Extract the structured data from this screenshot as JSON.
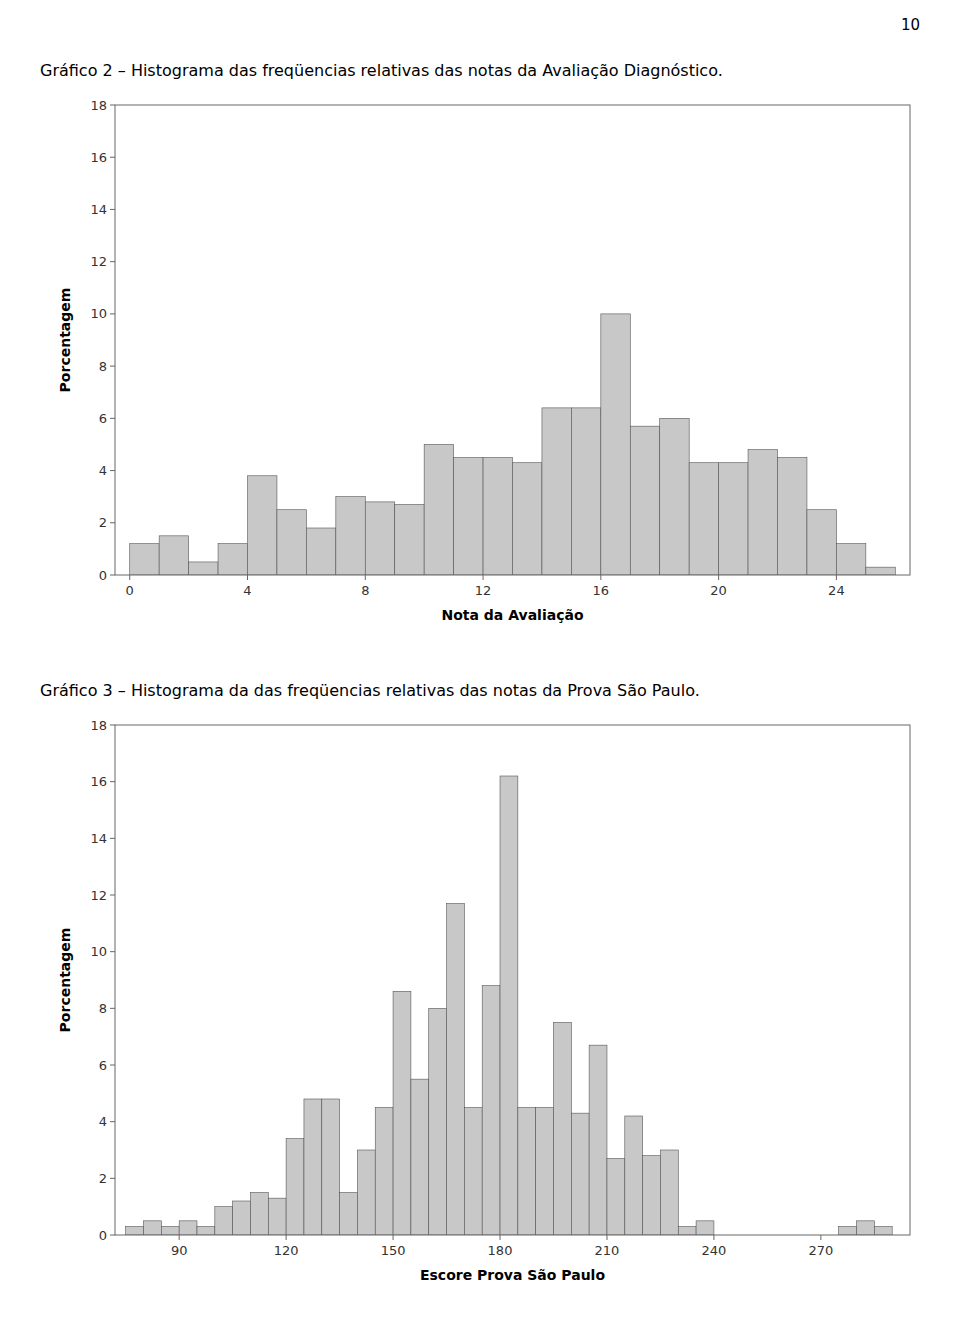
{
  "page_number": "10",
  "chart_data": [
    {
      "type": "histogram",
      "title": "Gráfico 2 – Histograma das freqüencias relativas das notas da Avaliação Diagnóstico.",
      "xlabel": "Nota da Avaliação",
      "ylabel": "Porcentagem",
      "bins": [
        0,
        1,
        2,
        3,
        4,
        5,
        6,
        7,
        8,
        9,
        10,
        11,
        12,
        13,
        14,
        15,
        16,
        17,
        18,
        19,
        20,
        21,
        22,
        23,
        24,
        25,
        26
      ],
      "values": [
        1.2,
        1.5,
        0.5,
        1.2,
        3.8,
        2.5,
        1.8,
        3.0,
        2.8,
        2.7,
        5.0,
        4.5,
        4.5,
        4.3,
        6.4,
        6.4,
        10.0,
        5.7,
        6.0,
        4.3,
        4.3,
        4.8,
        4.5,
        2.5,
        1.2,
        0.3
      ],
      "color": "#c8c8c8",
      "xlim": [
        -0.5,
        26.5
      ],
      "xticks": [
        0,
        4,
        8,
        12,
        16,
        20,
        24
      ],
      "ylim": [
        0,
        18
      ],
      "yticks": [
        0,
        2,
        4,
        6,
        8,
        10,
        12,
        14,
        16,
        18
      ],
      "grid": false
    },
    {
      "type": "histogram",
      "title": "Gráfico 3 – Histograma da das freqüencias relativas das notas da Prova São Paulo.",
      "xlabel": "Escore Prova São Paulo",
      "ylabel": "Porcentagem",
      "bins": [
        75,
        80,
        85,
        90,
        95,
        100,
        105,
        110,
        115,
        120,
        125,
        130,
        135,
        140,
        145,
        150,
        155,
        160,
        165,
        170,
        175,
        180,
        185,
        190,
        195,
        200,
        205,
        210,
        215,
        220,
        225,
        230,
        235,
        240,
        245,
        250,
        255,
        260,
        265,
        270,
        275,
        280,
        285,
        290
      ],
      "values": [
        0.3,
        0.5,
        0.3,
        0.5,
        0.3,
        1.0,
        1.2,
        1.5,
        1.3,
        3.4,
        4.8,
        4.8,
        1.5,
        3.0,
        4.5,
        8.6,
        5.5,
        8.0,
        11.7,
        4.5,
        8.8,
        16.2,
        4.5,
        4.5,
        7.5,
        4.3,
        6.7,
        2.7,
        4.2,
        2.8,
        3.0,
        0.3,
        0.5,
        0.0,
        0.0,
        0.0,
        0.0,
        0.0,
        0.0,
        0.0,
        0.3,
        0.5,
        0.3
      ],
      "color": "#c8c8c8",
      "xlim": [
        72,
        295
      ],
      "xticks": [
        90,
        120,
        150,
        180,
        210,
        240,
        270
      ],
      "ylim": [
        0,
        18
      ],
      "yticks": [
        0,
        2,
        4,
        6,
        8,
        10,
        12,
        14,
        16,
        18
      ],
      "grid": false
    }
  ]
}
